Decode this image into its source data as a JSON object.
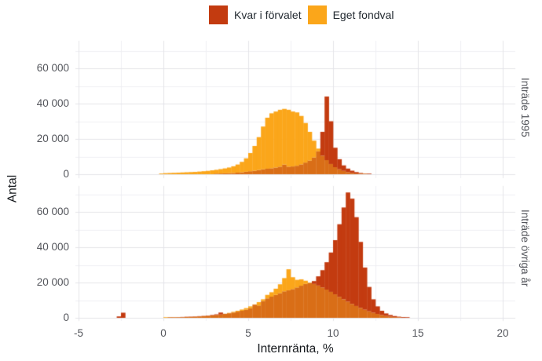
{
  "legend": {
    "items": [
      {
        "label": "Kvar i förvalet",
        "color": "#c33b10"
      },
      {
        "label": "Eget fondval",
        "color": "#fba61a"
      }
    ]
  },
  "chart_data": {
    "type": "histogram",
    "xlabel": "Internränta, %",
    "ylabel": "Antal",
    "x_axis": {
      "tick_values": [
        -5,
        0,
        5,
        10,
        15,
        20
      ],
      "tick_labels": [
        "-5",
        "0",
        "5",
        "10",
        "15",
        "20"
      ],
      "range": [
        -5.2,
        20.7
      ]
    },
    "y_axis": {
      "tick_values": [
        0,
        20000,
        40000,
        60000
      ],
      "tick_labels": [
        "0",
        "20 000",
        "40 000",
        "60 000"
      ],
      "range": [
        0,
        77000
      ]
    },
    "grid": {
      "minor_x_step": 2.5,
      "minor_y_step": 10000,
      "major_color": "#e5e5e9",
      "minor_color": "#f0f0f3"
    },
    "bin_width": 0.25,
    "colors": {
      "kvar": "#c33b10",
      "eget": "#fba61a",
      "overlap": "#d96e17"
    },
    "panels": [
      {
        "label": "Inträde 1995",
        "series": [
          {
            "name": "Kvar i förvalet",
            "color_key": "kvar",
            "start": 3.125,
            "values": [
              300,
              400,
              500,
              600,
              700,
              900,
              1100,
              1400,
              1700,
              2000,
              2400,
              2800,
              3100,
              3400,
              3800,
              4300,
              5500,
              4300,
              4400,
              4800,
              5600,
              6600,
              7800,
              9500,
              13000,
              24000,
              44000,
              30000,
              15000,
              8500,
              5000,
              3200,
              2000,
              1200,
              700,
              400,
              200
            ]
          },
          {
            "name": "Eget fondval",
            "color_key": "eget",
            "start": -0.125,
            "values": [
              400,
              600,
              700,
              800,
              900,
              1000,
              1100,
              1200,
              1300,
              1500,
              1700,
              1900,
              2200,
              2500,
              2900,
              3300,
              3800,
              4500,
              5500,
              7000,
              9000,
              12000,
              16000,
              21000,
              27000,
              32000,
              34500,
              35500,
              36500,
              37000,
              36500,
              35500,
              35000,
              33000,
              29000,
              24000,
              19000,
              14500,
              10500,
              8000,
              5800,
              4000,
              2800,
              1900,
              1200,
              700,
              400,
              250,
              150
            ]
          }
        ]
      },
      {
        "label": "Inträde övriga år",
        "series": [
          {
            "name": "Kvar i förvalet",
            "color_key": "kvar",
            "start": -2.625,
            "values": [
              800,
              2900,
              0,
              0,
              0,
              0,
              0,
              0,
              0,
              0,
              0,
              0,
              200,
              300,
              400,
              500,
              600,
              700,
              800,
              950,
              1100,
              1300,
              1600,
              2000,
              3000,
              2300,
              2600,
              3000,
              3500,
              4000,
              4600,
              5500,
              7500,
              7000,
              9500,
              11000,
              12000,
              13000,
              14000,
              15000,
              15600,
              16300,
              17200,
              18200,
              19200,
              19800,
              20800,
              23500,
              27000,
              31500,
              37000,
              44000,
              53000,
              62500,
              71000,
              67500,
              57000,
              43000,
              28500,
              17500,
              10500,
              6500,
              4000,
              2500,
              1600,
              1000,
              650,
              400,
              250
            ]
          },
          {
            "name": "Eget fondval",
            "color_key": "eget",
            "start": 0.125,
            "values": [
              150,
              200,
              250,
              300,
              350,
              450,
              550,
              650,
              800,
              950,
              1150,
              1350,
              1600,
              1900,
              2300,
              2800,
              3400,
              4000,
              4700,
              5500,
              6500,
              7600,
              8900,
              10500,
              13000,
              14500,
              16500,
              19000,
              22500,
              27500,
              23000,
              21500,
              21800,
              21000,
              20000,
              19200,
              18300,
              17200,
              16000,
              14700,
              13300,
              11900,
              10500,
              9200,
              7900,
              6700,
              5600,
              4600,
              3700,
              2900,
              2200,
              1600,
              1100,
              700,
              400,
              200
            ]
          }
        ]
      }
    ]
  }
}
